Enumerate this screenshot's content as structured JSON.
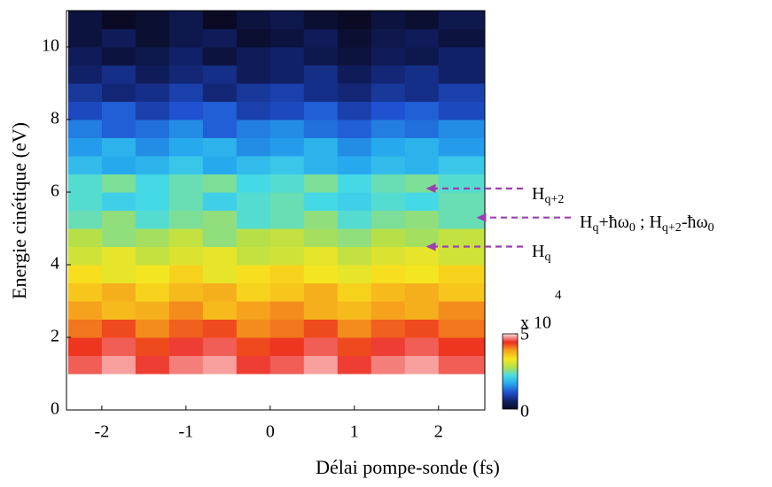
{
  "chart_data": {
    "type": "heatmap",
    "xlabel": "Délai pompe-sonde (fs)",
    "ylabel": "Energie cinétique (eV)",
    "x_edges": [
      -2.4,
      -2.0,
      -1.6,
      -1.2,
      -0.8,
      -0.4,
      0,
      0.4,
      0.8,
      1.2,
      1.6,
      2.0,
      2.55
    ],
    "y_edges": [
      1.0,
      1.5,
      2.0,
      2.5,
      3.0,
      3.5,
      4.0,
      4.5,
      5.0,
      5.5,
      6.0,
      6.5,
      7.0,
      7.5,
      8.0,
      8.5,
      9.0,
      9.5,
      10.0,
      10.5,
      11.0
    ],
    "z": [
      [
        4.6,
        4.8,
        4.5,
        4.7,
        4.8,
        4.5,
        4.6,
        4.8,
        4.5,
        4.7,
        4.8,
        4.6
      ],
      [
        4.4,
        4.6,
        4.3,
        4.5,
        4.6,
        4.3,
        4.4,
        4.6,
        4.3,
        4.5,
        4.6,
        4.4
      ],
      [
        4.1,
        4.3,
        4.0,
        4.2,
        4.3,
        4.0,
        4.1,
        4.3,
        4.0,
        4.2,
        4.3,
        4.1
      ],
      [
        3.9,
        3.7,
        3.8,
        4.0,
        3.7,
        3.9,
        4.0,
        3.8,
        3.7,
        3.9,
        3.8,
        4.0
      ],
      [
        3.6,
        3.8,
        3.5,
        3.7,
        3.8,
        3.5,
        3.6,
        3.8,
        3.5,
        3.7,
        3.8,
        3.6
      ],
      [
        3.4,
        3.2,
        3.3,
        3.5,
        3.2,
        3.4,
        3.5,
        3.3,
        3.2,
        3.4,
        3.3,
        3.5
      ],
      [
        3.0,
        3.2,
        2.9,
        3.1,
        3.2,
        2.9,
        3.0,
        3.2,
        2.9,
        3.1,
        3.2,
        3.0
      ],
      [
        2.8,
        2.6,
        2.7,
        2.9,
        2.6,
        2.8,
        2.9,
        2.7,
        2.6,
        2.8,
        2.7,
        2.9
      ],
      [
        2.4,
        2.6,
        2.3,
        2.5,
        2.6,
        2.3,
        2.4,
        2.6,
        2.3,
        2.5,
        2.6,
        2.4
      ],
      [
        2.3,
        2.1,
        2.2,
        2.4,
        2.1,
        2.3,
        2.4,
        2.2,
        2.1,
        2.3,
        2.2,
        2.4
      ],
      [
        2.3,
        2.5,
        2.2,
        2.4,
        2.5,
        2.2,
        2.3,
        2.5,
        2.2,
        2.4,
        2.5,
        2.3
      ],
      [
        1.9,
        1.7,
        1.8,
        2.0,
        1.7,
        1.9,
        2.0,
        1.8,
        1.7,
        1.9,
        1.8,
        2.0
      ],
      [
        1.6,
        1.8,
        1.5,
        1.7,
        1.8,
        1.5,
        1.6,
        1.8,
        1.5,
        1.7,
        1.8,
        1.6
      ],
      [
        1.4,
        1.2,
        1.3,
        1.5,
        1.2,
        1.4,
        1.5,
        1.3,
        1.2,
        1.4,
        1.3,
        1.5
      ],
      [
        1.0,
        1.2,
        0.9,
        1.1,
        1.2,
        0.9,
        1.0,
        1.2,
        0.9,
        1.1,
        1.2,
        1.0
      ],
      [
        0.8,
        0.6,
        0.7,
        0.9,
        0.6,
        0.8,
        0.9,
        0.7,
        0.6,
        0.8,
        0.7,
        0.9
      ],
      [
        0.5,
        0.7,
        0.4,
        0.6,
        0.7,
        0.4,
        0.5,
        0.7,
        0.4,
        0.6,
        0.7,
        0.5
      ],
      [
        0.4,
        0.2,
        0.3,
        0.5,
        0.2,
        0.4,
        0.5,
        0.3,
        0.2,
        0.4,
        0.3,
        0.5
      ],
      [
        0.2,
        0.4,
        0.1,
        0.3,
        0.4,
        0.1,
        0.2,
        0.4,
        0.1,
        0.3,
        0.4,
        0.2
      ],
      [
        0.2,
        0,
        0.1,
        0.3,
        0,
        0.2,
        0.3,
        0.1,
        0,
        0.2,
        0.1,
        0.3
      ]
    ],
    "xlim": [
      -2.42,
      2.55
    ],
    "xticks": [
      -2,
      -1,
      0,
      1,
      2
    ],
    "ylim": [
      0,
      11
    ],
    "yticks": [
      0,
      2,
      4,
      6,
      8,
      10
    ],
    "clim": [
      0,
      5
    ],
    "cticks": [
      0,
      5
    ],
    "colorbar_label": "x 10",
    "colorbar_exponent": "4",
    "colormap": [
      "#0a0a24",
      "#12236e",
      "#1f52d2",
      "#25a6ee",
      "#46dbe6",
      "#b4e04a",
      "#f7e61e",
      "#f6a41c",
      "#ec2b1f",
      "#fbe0e4"
    ],
    "annotations": [
      {
        "x": 1.85,
        "y": 6.1,
        "color": "#9b3fb0",
        "parts": [
          {
            "text": "H"
          },
          {
            "text": "q+2",
            "sub": true
          }
        ]
      },
      {
        "x": 2.45,
        "y": 5.3,
        "color": "#9b3fb0",
        "parts": [
          {
            "text": "H"
          },
          {
            "text": "q",
            "sub": true
          },
          {
            "text": "+ħω"
          },
          {
            "text": "0",
            "sub": true
          },
          {
            "text": " ; H"
          },
          {
            "text": "q+2",
            "sub": true
          },
          {
            "text": "-ħω"
          },
          {
            "text": "0",
            "sub": true
          }
        ]
      },
      {
        "x": 1.85,
        "y": 4.5,
        "color": "#9b3fb0",
        "parts": [
          {
            "text": "H"
          },
          {
            "text": "q",
            "sub": true
          }
        ]
      }
    ]
  }
}
